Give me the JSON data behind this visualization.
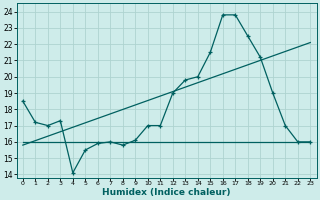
{
  "xlabel": "Humidex (Indice chaleur)",
  "ylabel": "",
  "background_color": "#ceecea",
  "grid_color": "#aed4d0",
  "line_color": "#006060",
  "xlim": [
    -0.5,
    23.5
  ],
  "ylim": [
    13.8,
    24.5
  ],
  "yticks": [
    14,
    15,
    16,
    17,
    18,
    19,
    20,
    21,
    22,
    23,
    24
  ],
  "xticks": [
    0,
    1,
    2,
    3,
    4,
    5,
    6,
    7,
    8,
    9,
    10,
    11,
    12,
    13,
    14,
    15,
    16,
    17,
    18,
    19,
    20,
    21,
    22,
    23
  ],
  "main_x": [
    0,
    1,
    2,
    3,
    4,
    5,
    6,
    7,
    8,
    9,
    10,
    11,
    12,
    13,
    14,
    15,
    16,
    17,
    18,
    19,
    20,
    21,
    22,
    23
  ],
  "main_y": [
    18.5,
    17.2,
    17.0,
    17.3,
    14.1,
    15.5,
    15.9,
    16.0,
    15.8,
    16.1,
    17.0,
    17.0,
    19.0,
    19.8,
    20.0,
    21.5,
    23.8,
    23.8,
    22.5,
    21.2,
    19.0,
    17.0,
    16.0,
    16.0
  ],
  "line1_x": [
    0,
    23
  ],
  "line1_y": [
    16.0,
    16.0
  ],
  "line2_x": [
    0,
    23
  ],
  "line2_y": [
    15.8,
    22.1
  ]
}
